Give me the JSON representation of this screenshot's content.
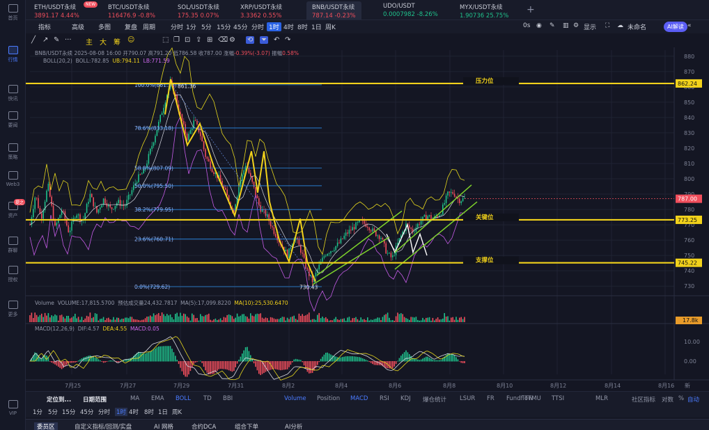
{
  "sidebar": {
    "items": [
      {
        "label": "首页",
        "icon": "home-icon"
      },
      {
        "label": "行情",
        "icon": "market-icon",
        "active": true
      },
      {
        "label": "快讯",
        "icon": "news-icon"
      },
      {
        "label": "要闻",
        "icon": "headline-icon"
      },
      {
        "label": "策略",
        "icon": "strategy-icon"
      },
      {
        "label": "Web3",
        "icon": "web3-icon"
      },
      {
        "label": "资产",
        "icon": "asset-icon",
        "badge": "提之"
      },
      {
        "label": "群聊",
        "icon": "chat-icon"
      },
      {
        "label": "授权",
        "icon": "auth-icon"
      },
      {
        "label": "更多",
        "icon": "more-icon"
      },
      {
        "label": "VIP",
        "icon": "vip-icon"
      }
    ]
  },
  "tabs": [
    {
      "symbol": "ETH/USDT永续",
      "price": "3891.17",
      "change": "4.44%",
      "dir": "dn",
      "new": "NEW"
    },
    {
      "symbol": "BTC/USDT永续",
      "price": "116476.9",
      "change": "-0.8%",
      "dir": "dn"
    },
    {
      "symbol": "SOL/USDT永续",
      "price": "175.35",
      "change": "0.07%",
      "dir": "dn"
    },
    {
      "symbol": "XRP/USDT永续",
      "price": "3.3362",
      "change": "0.55%",
      "dir": "dn"
    },
    {
      "symbol": "BNB/USDT永续",
      "price": "787.14",
      "change": "-0.23%",
      "dir": "dn",
      "active": true
    },
    {
      "symbol": "UDO/USDT",
      "price": "0.0007982",
      "change": "-8.26%",
      "dir": "up"
    },
    {
      "symbol": "MYX/USDT永续",
      "price": "1.90736",
      "change": "25.75%",
      "dir": "up"
    }
  ],
  "toolbar": {
    "left": [
      "指标",
      "高级",
      "多图",
      "复盘",
      "周期",
      "分时",
      "1分",
      "5分",
      "15分",
      "45分",
      "分时",
      "1时",
      "4时",
      "8时",
      "1日",
      "周K"
    ],
    "active_index": 11,
    "right": [
      "0s",
      "显示",
      "未命名"
    ],
    "ai": "AI解读"
  },
  "drawbar": {
    "items": [
      "主",
      "大",
      "筹"
    ]
  },
  "legend": {
    "line1": {
      "symbol": "BNB/USDT永续",
      "time": "2025-08-08 16:00",
      "open_l": "开",
      "open": "790.07",
      "high_l": "高",
      "high": "791.20",
      "low_l": "低",
      "low": "786.58",
      "close_l": "收",
      "close": "787.00",
      "chg_l": "涨幅",
      "chg": "-0.39%(-3.07)",
      "amp_l": "振幅",
      "amp": "0.58%"
    },
    "line2": {
      "name": "BOLL(20,2)",
      "boll_l": "BOLL:",
      "boll": "782.85",
      "ub_l": "UB:",
      "ub": "794.11",
      "lb_l": "LB:",
      "lb": "771.59"
    },
    "volume": {
      "name": "Volume",
      "vol_l": "VOLUME:",
      "vol": "17,815.5700",
      "pred_l": "预估成交量",
      "pred": "24,432.7817",
      "ma5_l": "MA(5):",
      "ma5": "17,099.8220",
      "ma10_l": "MA(10):",
      "ma10": "25,530.6470"
    },
    "macd": {
      "name": "MACD(12,26,9)",
      "dif_l": "DIF:",
      "dif": "4.57",
      "dea_l": "DEA:",
      "dea": "4.55",
      "macd_l": "MACD:",
      "macd": "0.05"
    }
  },
  "chart_data": {
    "type": "candlestick",
    "price_axis": {
      "ticks": [
        880,
        870,
        860,
        850,
        840,
        830,
        820,
        810,
        800,
        790,
        780,
        770,
        760,
        750,
        740,
        730
      ],
      "ylim": [
        726,
        884
      ]
    },
    "x_ticks": [
      "7月25",
      "7月27",
      "7月29",
      "7月31",
      "8月2",
      "8月4",
      "8月6",
      "8月8",
      "8月10",
      "8月12",
      "8月14",
      "8月16"
    ],
    "levels": [
      {
        "label": "压力位",
        "price": 862.24,
        "tag": "862.24"
      },
      {
        "label": "关键位",
        "price": 773.25,
        "tag": "773.25"
      },
      {
        "label": "支撑位",
        "price": 745.22,
        "tag": "745.22"
      }
    ],
    "current_price": {
      "value": 787.0,
      "tag": "787.00"
    },
    "fib": [
      {
        "label": "100.0%(861.36)",
        "price": 861.36
      },
      {
        "label": "78.6%(833.18)",
        "price": 833.18
      },
      {
        "label": "58.8%(807.09)",
        "price": 807.09
      },
      {
        "label": "50.0%(795.50)",
        "price": 795.5
      },
      {
        "label": "38.2%(779.95)",
        "price": 779.95
      },
      {
        "label": "23.6%(760.71)",
        "price": 760.71
      },
      {
        "label": "0.0%(729.62)",
        "price": 729.62
      }
    ],
    "annotations": [
      {
        "text": "861.36"
      },
      {
        "text": "730.43"
      }
    ],
    "volume_tag": "17.8k",
    "macd_ticks": [
      "10.00",
      "0.00"
    ],
    "colors": {
      "up": "#1fc18b",
      "down": "#f04e5c",
      "level": "#f2d21b",
      "channel": "#7ed32b",
      "fib": "#2a8be8"
    }
  },
  "indicators": {
    "left": [
      "定位到...",
      "日期范围"
    ],
    "main": [
      "MA",
      "EMA",
      "BOLL",
      "TD",
      "BBI"
    ],
    "main_active": 2,
    "sub": [
      "Volume",
      "Position",
      "MACD",
      "RSI",
      "KDJ",
      "爆仓统计",
      "LSUR",
      "FR",
      "Fundflow",
      "TTMU",
      "TTSI",
      "MLR"
    ],
    "sub_active": [
      0,
      2
    ],
    "right": [
      "社区指标",
      "对数",
      "%",
      "自动"
    ]
  },
  "timeframes": {
    "items": [
      "1分",
      "5分",
      "15分",
      "45分",
      "分时",
      "1时",
      "4时",
      "8时",
      "1日",
      "周K"
    ],
    "active_index": 5
  },
  "bottom_tabs": [
    "委员区",
    "自定义指标/回测/实盘",
    "AI 网格",
    "合约DCA",
    "组合下单",
    "AI分析"
  ],
  "axis_label": "新"
}
